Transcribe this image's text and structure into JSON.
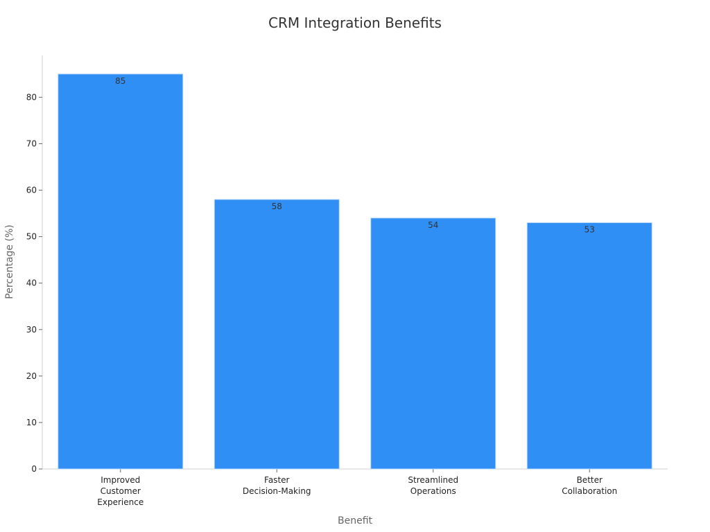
{
  "chart_data": {
    "type": "bar",
    "title": "CRM Integration Benefits",
    "xlabel": "Benefit",
    "ylabel": "Percentage (%)",
    "categories": [
      [
        "Improved",
        "Customer",
        "Experience"
      ],
      [
        "Faster",
        "Decision-Making"
      ],
      [
        "Streamlined",
        "Operations"
      ],
      [
        "Better",
        "Collaboration"
      ]
    ],
    "values": [
      85,
      58,
      54,
      53
    ],
    "ylim": [
      0,
      89
    ],
    "yticks": [
      0,
      10,
      20,
      30,
      40,
      50,
      60,
      70,
      80
    ],
    "grid": false,
    "bar_color": "#2f8ff5",
    "bar_edge_color": "#b7d6fb"
  }
}
